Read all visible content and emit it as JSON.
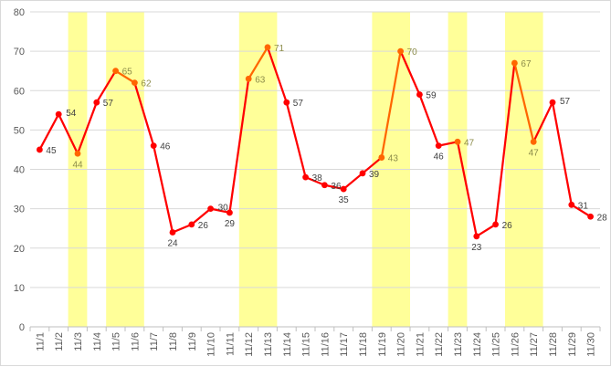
{
  "chart_data": {
    "type": "line",
    "title": "",
    "xlabel": "",
    "ylabel": "",
    "ylim": [
      0,
      80
    ],
    "yticks": [
      0,
      10,
      20,
      30,
      40,
      50,
      60,
      70,
      80
    ],
    "grid": "horizontal",
    "legend": "none",
    "categories": [
      "11/1",
      "11/2",
      "11/3",
      "11/4",
      "11/5",
      "11/6",
      "11/7",
      "11/8",
      "11/9",
      "11/10",
      "11/11",
      "11/12",
      "11/13",
      "11/14",
      "11/15",
      "11/16",
      "11/17",
      "11/18",
      "11/19",
      "11/20",
      "11/21",
      "11/22",
      "11/23",
      "11/24",
      "11/25",
      "11/26",
      "11/27",
      "11/28",
      "11/29",
      "11/30"
    ],
    "series": [
      {
        "values": [
          45,
          54,
          44,
          57,
          65,
          62,
          46,
          24,
          26,
          30,
          29,
          63,
          71,
          57,
          38,
          36,
          35,
          39,
          43,
          70,
          59,
          46,
          47,
          23,
          26,
          67,
          47,
          57,
          31,
          28
        ],
        "color": "#ff0000",
        "highlight_color": "#ff6600"
      }
    ],
    "highlighted_categories": [
      "11/3",
      "11/5",
      "11/6",
      "11/12",
      "11/13",
      "11/19",
      "11/20",
      "11/23",
      "11/26",
      "11/27"
    ],
    "highlight_band_color": "#ffff99",
    "label_color_default": "#404040",
    "label_color_highlight": "#8c8c4a"
  }
}
